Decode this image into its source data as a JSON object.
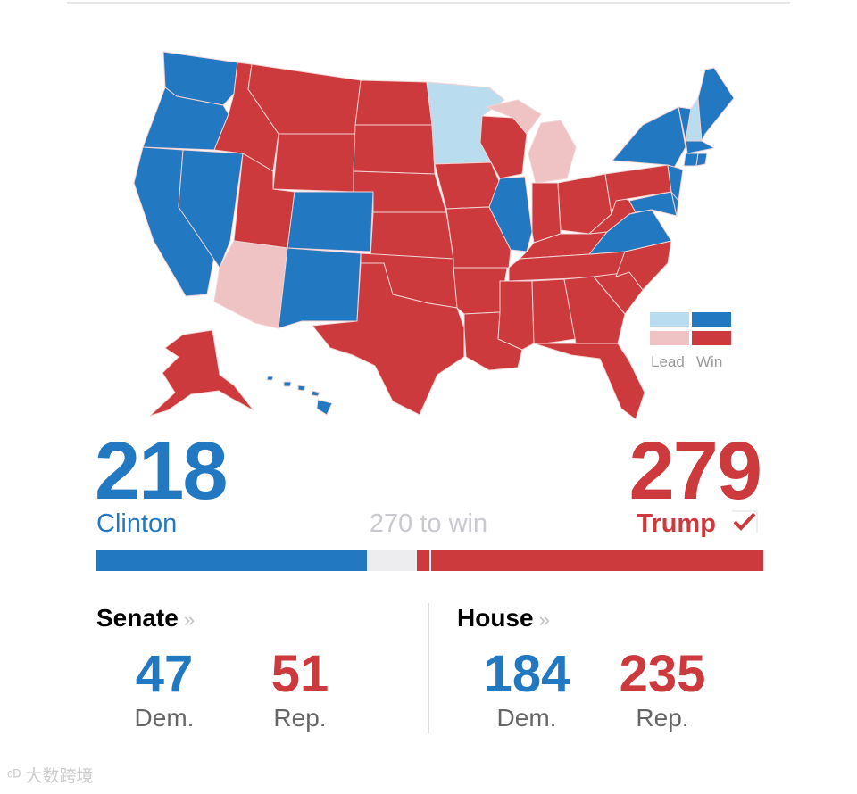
{
  "colors": {
    "dem_win": "#2279c1",
    "dem_lead": "#b9dcef",
    "rep_win": "#cc3a3d",
    "rep_lead": "#efc3c4",
    "undecided": "#ededf0"
  },
  "legend": {
    "lead_label": "Lead",
    "win_label": "Win"
  },
  "electoral": {
    "dem": {
      "votes": "218",
      "name": "Clinton",
      "vote_fraction": 0.405
    },
    "rep": {
      "votes": "279",
      "name": "Trump",
      "vote_fraction": 0.519,
      "winner_icon": "check-mark-icon"
    },
    "threshold_label": "270 to win",
    "total_votes": 538
  },
  "senate": {
    "title": "Senate",
    "chevron": "»",
    "dem_seats": "47",
    "dem_label": "Dem.",
    "rep_seats": "51",
    "rep_label": "Rep."
  },
  "house": {
    "title": "House",
    "chevron": "»",
    "dem_seats": "184",
    "dem_label": "Dem.",
    "rep_seats": "235",
    "rep_label": "Rep."
  },
  "watermark": "大数跨境",
  "map": {
    "states": [
      {
        "name": "Washington",
        "status": "dem_win"
      },
      {
        "name": "Oregon",
        "status": "dem_win"
      },
      {
        "name": "California",
        "status": "dem_win"
      },
      {
        "name": "Nevada",
        "status": "dem_win"
      },
      {
        "name": "Colorado",
        "status": "dem_win"
      },
      {
        "name": "New Mexico",
        "status": "dem_win"
      },
      {
        "name": "Arizona",
        "status": "rep_lead"
      },
      {
        "name": "Idaho",
        "status": "rep_win"
      },
      {
        "name": "Montana",
        "status": "rep_win"
      },
      {
        "name": "Wyoming",
        "status": "rep_win"
      },
      {
        "name": "Utah",
        "status": "rep_win"
      },
      {
        "name": "North Dakota",
        "status": "rep_win"
      },
      {
        "name": "South Dakota",
        "status": "rep_win"
      },
      {
        "name": "Nebraska",
        "status": "rep_win"
      },
      {
        "name": "Kansas",
        "status": "rep_win"
      },
      {
        "name": "Oklahoma",
        "status": "rep_win"
      },
      {
        "name": "Texas",
        "status": "rep_win"
      },
      {
        "name": "Minnesota",
        "status": "dem_lead"
      },
      {
        "name": "Iowa",
        "status": "rep_win"
      },
      {
        "name": "Missouri",
        "status": "rep_win"
      },
      {
        "name": "Arkansas",
        "status": "rep_win"
      },
      {
        "name": "Louisiana",
        "status": "rep_win"
      },
      {
        "name": "Wisconsin",
        "status": "rep_win"
      },
      {
        "name": "Illinois",
        "status": "dem_win"
      },
      {
        "name": "Michigan",
        "status": "rep_lead"
      },
      {
        "name": "Indiana",
        "status": "rep_win"
      },
      {
        "name": "Ohio",
        "status": "rep_win"
      },
      {
        "name": "Kentucky",
        "status": "rep_win"
      },
      {
        "name": "Tennessee",
        "status": "rep_win"
      },
      {
        "name": "Mississippi",
        "status": "rep_win"
      },
      {
        "name": "Alabama",
        "status": "rep_win"
      },
      {
        "name": "Georgia",
        "status": "rep_win"
      },
      {
        "name": "Florida",
        "status": "rep_win"
      },
      {
        "name": "South Carolina",
        "status": "rep_win"
      },
      {
        "name": "North Carolina",
        "status": "rep_win"
      },
      {
        "name": "Virginia",
        "status": "dem_win"
      },
      {
        "name": "West Virginia",
        "status": "rep_win"
      },
      {
        "name": "Pennsylvania",
        "status": "rep_win"
      },
      {
        "name": "New York",
        "status": "dem_win"
      },
      {
        "name": "New Jersey",
        "status": "dem_win"
      },
      {
        "name": "Maryland",
        "status": "dem_win"
      },
      {
        "name": "Delaware",
        "status": "dem_win"
      },
      {
        "name": "Vermont",
        "status": "dem_win"
      },
      {
        "name": "New Hampshire",
        "status": "dem_lead"
      },
      {
        "name": "Maine",
        "status": "dem_win"
      },
      {
        "name": "Massachusetts",
        "status": "dem_win"
      },
      {
        "name": "Connecticut",
        "status": "dem_win"
      },
      {
        "name": "Rhode Island",
        "status": "dem_win"
      },
      {
        "name": "Alaska",
        "status": "rep_win"
      },
      {
        "name": "Hawaii",
        "status": "dem_win"
      }
    ]
  }
}
